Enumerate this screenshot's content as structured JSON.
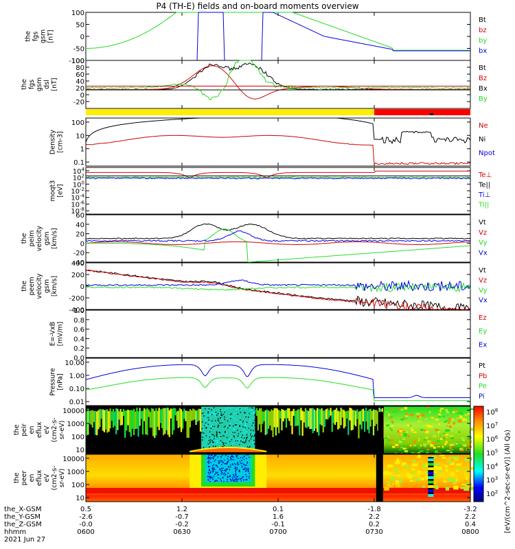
{
  "title": "P4 (TH-E) fields and on-board moments overview",
  "date_label": "2021 Jun 27",
  "colorbar_label": "[eV/(cm^2-sec-sr-eV)] (All Qs)",
  "colorbar_ticks": [
    "10^8",
    "10^7",
    "10^6",
    "10^5",
    "10^4",
    "10^3",
    "10^2"
  ],
  "colors": {
    "black": "#000000",
    "red": "#d00000",
    "green": "#22dd22",
    "blue": "#0000dd",
    "yellow": "#ffee00",
    "redbar": "#ff0000"
  },
  "footer": {
    "rows": [
      {
        "label": "the_X-GSM",
        "values": [
          "0.5",
          "1.2",
          "0.1",
          "-1.8",
          "-3.2"
        ]
      },
      {
        "label": "the_Y-GSM",
        "values": [
          "-2.6",
          "-0.7",
          "1.6",
          "2.2",
          "2.2"
        ]
      },
      {
        "label": "the_Z-GSM",
        "values": [
          "-0.0",
          "-0.2",
          "-0.1",
          "0.2",
          "0.4"
        ]
      },
      {
        "label": "hhmm",
        "values": [
          "0600",
          "0630",
          "0700",
          "0730",
          "0800"
        ]
      }
    ]
  },
  "chart_data": [
    {
      "type": "line",
      "id": "fgs_gsm",
      "ylabel": [
        "the",
        "fgs",
        "gsm",
        "[nT]"
      ],
      "ylim": [
        -100,
        100
      ],
      "yticks": [
        "100",
        "50",
        "0",
        "-50",
        "-100"
      ],
      "legend": [
        "Bt",
        "bz",
        "by",
        "bx"
      ],
      "x": [
        "0600",
        "0630",
        "0700",
        "0730",
        "0800"
      ],
      "series": [
        {
          "name": "Bt",
          "color": "black"
        },
        {
          "name": "bz",
          "color": "red"
        },
        {
          "name": "by",
          "color": "green",
          "values": [
            -50,
            100,
            100,
            0,
            -60
          ]
        },
        {
          "name": "bx",
          "color": "blue",
          "values": [
            -100,
            100,
            100,
            -30,
            -62
          ]
        }
      ]
    },
    {
      "type": "line",
      "id": "fgs_dsl",
      "ylabel": [
        "the",
        "fgs",
        "gsm",
        "dsl",
        "[nT]"
      ],
      "ylim": [
        -40,
        100
      ],
      "yticks": [
        "100",
        "80",
        "60",
        "40",
        "20",
        "0",
        "-20"
      ],
      "legend": [
        "Bt",
        "Bz",
        "Bx",
        "By"
      ],
      "series": [
        {
          "name": "Bt",
          "color": "black",
          "values": [
            14,
            80,
            15,
            15,
            16
          ]
        },
        {
          "name": "Bz",
          "color": "red",
          "values": [
            15,
            80,
            -15,
            25,
            22
          ]
        },
        {
          "name": "Bx",
          "color": "black",
          "values": [
            14,
            15,
            15,
            14,
            14
          ]
        },
        {
          "name": "By",
          "color": "green",
          "values": [
            20,
            -25,
            100,
            10,
            8
          ]
        }
      ]
    },
    {
      "type": "bar",
      "id": "mode_bar",
      "segments": [
        {
          "color": "yellow",
          "from": "0600",
          "to": "0730"
        },
        {
          "color": "redbar",
          "from": "0730",
          "to": "0800"
        }
      ]
    },
    {
      "type": "line",
      "id": "density",
      "ylabel": [
        "Density",
        "[cm-3]"
      ],
      "yscale": "log",
      "ylim": [
        0.05,
        200
      ],
      "yticks": [
        "100",
        "10",
        "1",
        "0.1"
      ],
      "legend": [
        "Ne",
        "Ni",
        "Npot"
      ],
      "series": [
        {
          "name": "Ne",
          "color": "red",
          "values": [
            0.3,
            8,
            2,
            8,
            0.08
          ]
        },
        {
          "name": "Ni",
          "color": "black",
          "values": [
            3,
            200,
            200,
            5,
            3
          ]
        },
        {
          "name": "Npot",
          "color": "blue"
        }
      ]
    },
    {
      "type": "line",
      "id": "temperature",
      "ylabel": [
        "moqt3",
        "[eV]"
      ],
      "yscale": "log",
      "ylim": [
        1e-09,
        100000.0
      ],
      "yticks": [
        "10^4",
        "10^2",
        "10^0",
        "10^-2",
        "10^-4",
        "10^-6",
        "10^-8"
      ],
      "legend": [
        "Te⊥",
        "Te||",
        "Ti⊥",
        "Ti||"
      ],
      "series": [
        {
          "name": "Te⊥",
          "color": "red"
        },
        {
          "name": "Te||",
          "color": "black"
        },
        {
          "name": "Ti⊥",
          "color": "blue"
        },
        {
          "name": "Ti||",
          "color": "green"
        }
      ]
    },
    {
      "type": "line",
      "id": "peim_velocity",
      "ylabel": [
        "the",
        "peim",
        "velocity",
        "gsm",
        "[km/s]"
      ],
      "ylim": [
        -40,
        60
      ],
      "yticks": [
        "60",
        "40",
        "20",
        "0",
        "-20",
        "-40"
      ],
      "legend": [
        "Vt",
        "Vz",
        "Vy",
        "Vx"
      ],
      "series": [
        {
          "name": "Vt",
          "color": "black"
        },
        {
          "name": "Vz",
          "color": "red"
        },
        {
          "name": "Vy",
          "color": "green"
        },
        {
          "name": "Vx",
          "color": "blue"
        }
      ]
    },
    {
      "type": "line",
      "id": "peem_velocity",
      "ylabel": [
        "the",
        "peem",
        "velocity",
        "gsm",
        "[km/s]"
      ],
      "ylim": [
        -400,
        400
      ],
      "yticks": [
        "400",
        "200",
        "0",
        "-200",
        "-400"
      ],
      "legend": [
        "Vt",
        "Vz",
        "Vy",
        "Vx"
      ],
      "series": [
        {
          "name": "Vt",
          "color": "black"
        },
        {
          "name": "Vz",
          "color": "red"
        },
        {
          "name": "Vy",
          "color": "green"
        },
        {
          "name": "Vx",
          "color": "blue"
        }
      ]
    },
    {
      "type": "line",
      "id": "efield",
      "ylabel": [
        "E=-VxB",
        "[mV/m]"
      ],
      "ylim": [
        0,
        1
      ],
      "yticks": [
        "1.0",
        "0.8",
        "0.6",
        "0.4",
        "0.2",
        "0.0"
      ],
      "legend": [
        "Ez",
        "Ey",
        "Ex"
      ],
      "series": [
        {
          "name": "Ez",
          "color": "red"
        },
        {
          "name": "Ey",
          "color": "green"
        },
        {
          "name": "Ex",
          "color": "blue"
        }
      ]
    },
    {
      "type": "line",
      "id": "pressure",
      "ylabel": [
        "Pressure",
        "[nPa]"
      ],
      "yscale": "log",
      "ylim": [
        0.005,
        20
      ],
      "yticks": [
        "10.00",
        "1.00",
        "0.10",
        "0.01"
      ],
      "legend": [
        "Pt",
        "Pb",
        "Pe",
        "Pi"
      ],
      "series": [
        {
          "name": "Pt",
          "color": "black"
        },
        {
          "name": "Pb",
          "color": "red"
        },
        {
          "name": "Pe",
          "color": "green"
        },
        {
          "name": "Pi",
          "color": "blue"
        }
      ]
    },
    {
      "type": "heatmap",
      "id": "peir_spec",
      "ylabel": [
        "the",
        "peir",
        "en",
        "eflux",
        "eV",
        "(cm2-s-",
        "sr-eV)"
      ],
      "yscale": "log",
      "ylim": [
        5,
        20000
      ],
      "yticks": [
        "10000",
        "1000",
        "100",
        "10"
      ]
    },
    {
      "type": "heatmap",
      "id": "peer_spec",
      "ylabel": [
        "the",
        "peer",
        "en",
        "eflux",
        "eV",
        "(cm2-s-",
        "sr-eV)"
      ],
      "yscale": "log",
      "ylim": [
        5,
        20000
      ],
      "yticks": [
        "10000",
        "1000",
        "100",
        "10"
      ]
    }
  ]
}
